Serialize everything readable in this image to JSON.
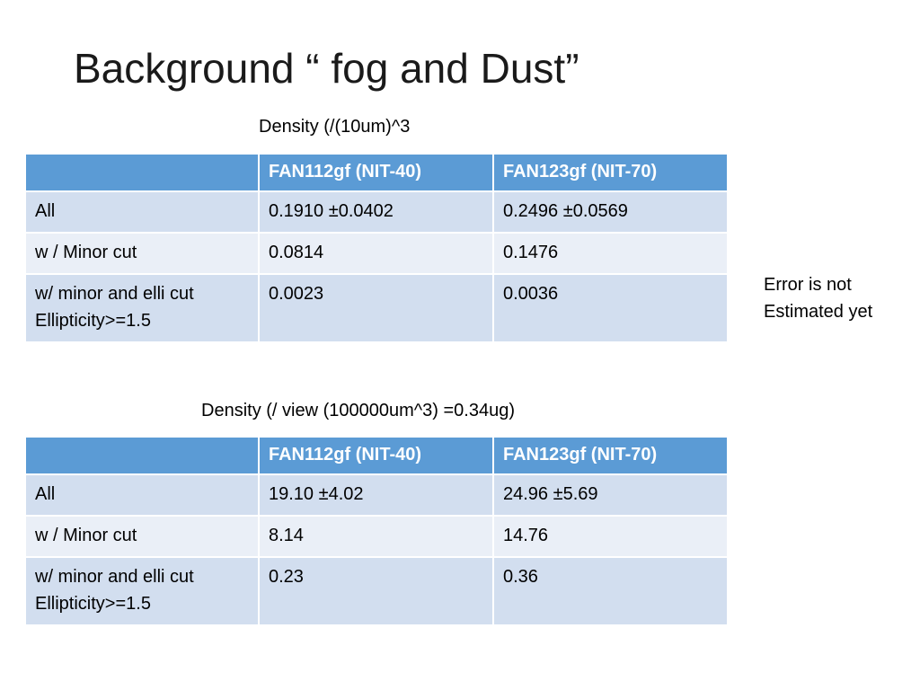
{
  "slide": {
    "title": "Background “ fog and Dust”",
    "note": {
      "line1": "Error is not",
      "line2": "Estimated yet"
    }
  },
  "table1": {
    "caption": "Density (/(10um)^3",
    "headers": [
      "",
      "FAN112gf (NIT-40)",
      "FAN123gf (NIT-70)"
    ],
    "rows": [
      {
        "label": [
          "All"
        ],
        "v1": "0.1910 ±0.0402",
        "v2": "0.2496 ±0.0569"
      },
      {
        "label": [
          "w / Minor cut"
        ],
        "v1": "0.0814",
        "v2": "0.1476"
      },
      {
        "label": [
          "w/ minor and elli cut",
          "Ellipticity>=1.5"
        ],
        "v1": "0.0023",
        "v2": "0.0036"
      }
    ]
  },
  "table2": {
    "caption": "Density (/ view (100000um^3) =0.34ug)",
    "headers": [
      "",
      "FAN112gf (NIT-40)",
      "FAN123gf (NIT-70)"
    ],
    "rows": [
      {
        "label": [
          "All"
        ],
        "v1": "19.10 ±4.02",
        "v2": "24.96 ±5.69"
      },
      {
        "label": [
          "w / Minor cut"
        ],
        "v1": "8.14",
        "v2": "14.76"
      },
      {
        "label": [
          "w/ minor and elli cut",
          "Ellipticity>=1.5"
        ],
        "v1": "0.23",
        "v2": "0.36"
      }
    ]
  },
  "colors": {
    "header_bg": "#5b9bd5",
    "row_odd_bg": "#d2deef",
    "row_even_bg": "#eaeff7"
  }
}
